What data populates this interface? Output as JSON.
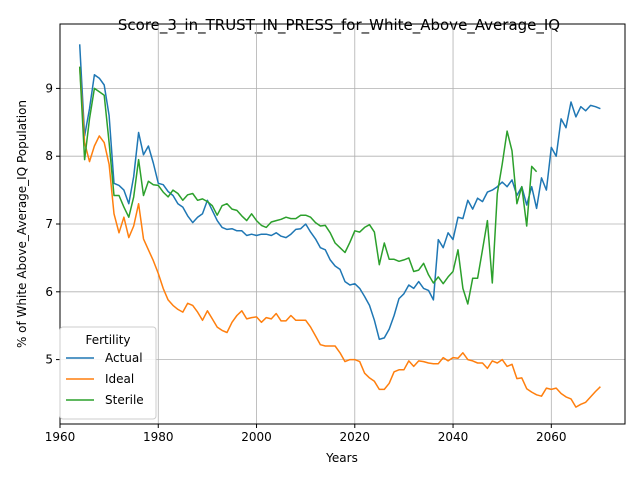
{
  "chart_data": {
    "type": "line",
    "title": "Score_3_in_TRUST_IN_PRESS_for_White_Above_Average_IQ",
    "xlabel": "Years",
    "ylabel": "% of White Above_Average_IQ Population",
    "xlim": [
      1960,
      2075
    ],
    "ylim": [
      4.05,
      9.95
    ],
    "xticks": [
      1960,
      1980,
      2000,
      2020,
      2040,
      2060
    ],
    "yticks": [
      5,
      6,
      7,
      8,
      9
    ],
    "grid": true,
    "legend": {
      "title": "Fertility",
      "placement": "lower-left"
    },
    "series": [
      {
        "name": "Actual",
        "color": "#1f77b4",
        "points": [
          [
            1964,
            9.65
          ],
          [
            1965,
            8.3
          ],
          [
            1966,
            8.7
          ],
          [
            1967,
            9.2
          ],
          [
            1968,
            9.15
          ],
          [
            1969,
            9.05
          ],
          [
            1970,
            8.6
          ],
          [
            1971,
            7.6
          ],
          [
            1972,
            7.57
          ],
          [
            1973,
            7.5
          ],
          [
            1974,
            7.3
          ],
          [
            1975,
            7.7
          ],
          [
            1976,
            8.35
          ],
          [
            1977,
            8.02
          ],
          [
            1978,
            8.15
          ],
          [
            1979,
            7.9
          ],
          [
            1980,
            7.6
          ],
          [
            1981,
            7.58
          ],
          [
            1982,
            7.48
          ],
          [
            1983,
            7.42
          ],
          [
            1984,
            7.3
          ],
          [
            1985,
            7.25
          ],
          [
            1986,
            7.12
          ],
          [
            1987,
            7.02
          ],
          [
            1988,
            7.1
          ],
          [
            1989,
            7.15
          ],
          [
            1990,
            7.35
          ],
          [
            1991,
            7.2
          ],
          [
            1992,
            7.05
          ],
          [
            1993,
            6.95
          ],
          [
            1994,
            6.92
          ],
          [
            1995,
            6.93
          ],
          [
            1996,
            6.9
          ],
          [
            1997,
            6.9
          ],
          [
            1998,
            6.83
          ],
          [
            1999,
            6.85
          ],
          [
            2000,
            6.83
          ],
          [
            2001,
            6.85
          ],
          [
            2002,
            6.85
          ],
          [
            2003,
            6.83
          ],
          [
            2004,
            6.87
          ],
          [
            2005,
            6.82
          ],
          [
            2006,
            6.8
          ],
          [
            2007,
            6.85
          ],
          [
            2008,
            6.92
          ],
          [
            2009,
            6.93
          ],
          [
            2010,
            7.0
          ],
          [
            2011,
            6.88
          ],
          [
            2012,
            6.78
          ],
          [
            2013,
            6.65
          ],
          [
            2014,
            6.62
          ],
          [
            2015,
            6.47
          ],
          [
            2016,
            6.38
          ],
          [
            2017,
            6.33
          ],
          [
            2018,
            6.15
          ],
          [
            2019,
            6.1
          ],
          [
            2020,
            6.12
          ],
          [
            2021,
            6.05
          ],
          [
            2022,
            5.93
          ],
          [
            2023,
            5.8
          ],
          [
            2024,
            5.58
          ],
          [
            2025,
            5.3
          ],
          [
            2026,
            5.32
          ],
          [
            2027,
            5.45
          ],
          [
            2028,
            5.65
          ],
          [
            2029,
            5.9
          ],
          [
            2030,
            5.97
          ],
          [
            2031,
            6.1
          ],
          [
            2032,
            6.05
          ],
          [
            2033,
            6.15
          ],
          [
            2034,
            6.05
          ],
          [
            2035,
            6.02
          ],
          [
            2036,
            5.88
          ],
          [
            2037,
            6.77
          ],
          [
            2038,
            6.65
          ],
          [
            2039,
            6.87
          ],
          [
            2040,
            6.77
          ],
          [
            2041,
            7.1
          ],
          [
            2042,
            7.08
          ],
          [
            2043,
            7.35
          ],
          [
            2044,
            7.22
          ],
          [
            2045,
            7.38
          ],
          [
            2046,
            7.33
          ],
          [
            2047,
            7.47
          ],
          [
            2048,
            7.5
          ],
          [
            2049,
            7.55
          ],
          [
            2050,
            7.62
          ],
          [
            2051,
            7.55
          ],
          [
            2052,
            7.65
          ],
          [
            2053,
            7.42
          ],
          [
            2054,
            7.55
          ],
          [
            2055,
            7.28
          ],
          [
            2056,
            7.55
          ],
          [
            2057,
            7.23
          ],
          [
            2058,
            7.68
          ],
          [
            2059,
            7.5
          ],
          [
            2060,
            8.13
          ],
          [
            2061,
            8.0
          ],
          [
            2062,
            8.55
          ],
          [
            2063,
            8.42
          ],
          [
            2064,
            8.8
          ],
          [
            2065,
            8.58
          ],
          [
            2066,
            8.73
          ],
          [
            2067,
            8.67
          ],
          [
            2068,
            8.75
          ],
          [
            2069,
            8.73
          ],
          [
            2070,
            8.7
          ]
        ]
      },
      {
        "name": "Ideal",
        "color": "#ff7f0e",
        "points": [
          [
            1964,
            9.32
          ],
          [
            1965,
            8.2
          ],
          [
            1966,
            7.92
          ],
          [
            1967,
            8.15
          ],
          [
            1968,
            8.3
          ],
          [
            1969,
            8.2
          ],
          [
            1970,
            7.88
          ],
          [
            1971,
            7.15
          ],
          [
            1972,
            6.87
          ],
          [
            1973,
            7.1
          ],
          [
            1974,
            6.8
          ],
          [
            1975,
            6.97
          ],
          [
            1976,
            7.3
          ],
          [
            1977,
            6.78
          ],
          [
            1978,
            6.62
          ],
          [
            1979,
            6.46
          ],
          [
            1980,
            6.27
          ],
          [
            1981,
            6.05
          ],
          [
            1982,
            5.88
          ],
          [
            1983,
            5.8
          ],
          [
            1984,
            5.74
          ],
          [
            1985,
            5.7
          ],
          [
            1986,
            5.83
          ],
          [
            1987,
            5.8
          ],
          [
            1988,
            5.7
          ],
          [
            1989,
            5.58
          ],
          [
            1990,
            5.72
          ],
          [
            1991,
            5.6
          ],
          [
            1992,
            5.48
          ],
          [
            1993,
            5.43
          ],
          [
            1994,
            5.4
          ],
          [
            1995,
            5.55
          ],
          [
            1996,
            5.65
          ],
          [
            1997,
            5.72
          ],
          [
            1998,
            5.6
          ],
          [
            1999,
            5.62
          ],
          [
            2000,
            5.63
          ],
          [
            2001,
            5.55
          ],
          [
            2002,
            5.62
          ],
          [
            2003,
            5.6
          ],
          [
            2004,
            5.68
          ],
          [
            2005,
            5.57
          ],
          [
            2006,
            5.57
          ],
          [
            2007,
            5.65
          ],
          [
            2008,
            5.58
          ],
          [
            2009,
            5.58
          ],
          [
            2010,
            5.58
          ],
          [
            2011,
            5.48
          ],
          [
            2012,
            5.35
          ],
          [
            2013,
            5.22
          ],
          [
            2014,
            5.2
          ],
          [
            2015,
            5.2
          ],
          [
            2016,
            5.2
          ],
          [
            2017,
            5.1
          ],
          [
            2018,
            4.97
          ],
          [
            2019,
            5.0
          ],
          [
            2020,
            5.0
          ],
          [
            2021,
            4.97
          ],
          [
            2022,
            4.8
          ],
          [
            2023,
            4.73
          ],
          [
            2024,
            4.68
          ],
          [
            2025,
            4.56
          ],
          [
            2026,
            4.56
          ],
          [
            2027,
            4.65
          ],
          [
            2028,
            4.82
          ],
          [
            2029,
            4.85
          ],
          [
            2030,
            4.85
          ],
          [
            2031,
            4.98
          ],
          [
            2032,
            4.9
          ],
          [
            2033,
            4.98
          ],
          [
            2034,
            4.97
          ],
          [
            2035,
            4.95
          ],
          [
            2036,
            4.94
          ],
          [
            2037,
            4.94
          ],
          [
            2038,
            5.03
          ],
          [
            2039,
            4.98
          ],
          [
            2040,
            5.03
          ],
          [
            2041,
            5.02
          ],
          [
            2042,
            5.1
          ],
          [
            2043,
            5.0
          ],
          [
            2044,
            4.98
          ],
          [
            2045,
            4.95
          ],
          [
            2046,
            4.95
          ],
          [
            2047,
            4.87
          ],
          [
            2048,
            4.98
          ],
          [
            2049,
            4.95
          ],
          [
            2050,
            5.0
          ],
          [
            2051,
            4.9
          ],
          [
            2052,
            4.93
          ],
          [
            2053,
            4.72
          ],
          [
            2054,
            4.73
          ],
          [
            2055,
            4.57
          ],
          [
            2056,
            4.52
          ],
          [
            2057,
            4.48
          ],
          [
            2058,
            4.46
          ],
          [
            2059,
            4.58
          ],
          [
            2060,
            4.56
          ],
          [
            2061,
            4.58
          ],
          [
            2062,
            4.5
          ],
          [
            2063,
            4.45
          ],
          [
            2064,
            4.42
          ],
          [
            2065,
            4.3
          ],
          [
            2066,
            4.34
          ],
          [
            2067,
            4.37
          ],
          [
            2068,
            4.45
          ],
          [
            2069,
            4.53
          ],
          [
            2070,
            4.6
          ]
        ]
      },
      {
        "name": "Sterile",
        "color": "#2ca02c",
        "points": [
          [
            1964,
            9.32
          ],
          [
            1965,
            7.95
          ],
          [
            1966,
            8.55
          ],
          [
            1967,
            9.0
          ],
          [
            1968,
            8.95
          ],
          [
            1969,
            8.9
          ],
          [
            1970,
            8.2
          ],
          [
            1971,
            7.42
          ],
          [
            1972,
            7.42
          ],
          [
            1973,
            7.25
          ],
          [
            1974,
            7.1
          ],
          [
            1975,
            7.4
          ],
          [
            1976,
            7.95
          ],
          [
            1977,
            7.42
          ],
          [
            1978,
            7.63
          ],
          [
            1979,
            7.58
          ],
          [
            1980,
            7.57
          ],
          [
            1981,
            7.47
          ],
          [
            1982,
            7.4
          ],
          [
            1983,
            7.5
          ],
          [
            1984,
            7.45
          ],
          [
            1985,
            7.35
          ],
          [
            1986,
            7.43
          ],
          [
            1987,
            7.45
          ],
          [
            1988,
            7.35
          ],
          [
            1989,
            7.37
          ],
          [
            1990,
            7.33
          ],
          [
            1991,
            7.27
          ],
          [
            1992,
            7.13
          ],
          [
            1993,
            7.27
          ],
          [
            1994,
            7.3
          ],
          [
            1995,
            7.22
          ],
          [
            1996,
            7.2
          ],
          [
            1997,
            7.12
          ],
          [
            1998,
            7.05
          ],
          [
            1999,
            7.15
          ],
          [
            2000,
            7.05
          ],
          [
            2001,
            6.98
          ],
          [
            2002,
            6.95
          ],
          [
            2003,
            7.03
          ],
          [
            2004,
            7.05
          ],
          [
            2005,
            7.07
          ],
          [
            2006,
            7.1
          ],
          [
            2007,
            7.08
          ],
          [
            2008,
            7.08
          ],
          [
            2009,
            7.13
          ],
          [
            2010,
            7.13
          ],
          [
            2011,
            7.1
          ],
          [
            2012,
            7.02
          ],
          [
            2013,
            6.97
          ],
          [
            2014,
            6.98
          ],
          [
            2015,
            6.87
          ],
          [
            2016,
            6.72
          ],
          [
            2017,
            6.65
          ],
          [
            2018,
            6.58
          ],
          [
            2019,
            6.73
          ],
          [
            2020,
            6.9
          ],
          [
            2021,
            6.88
          ],
          [
            2022,
            6.95
          ],
          [
            2023,
            6.99
          ],
          [
            2024,
            6.88
          ],
          [
            2025,
            6.4
          ],
          [
            2026,
            6.72
          ],
          [
            2027,
            6.48
          ],
          [
            2028,
            6.48
          ],
          [
            2029,
            6.45
          ],
          [
            2030,
            6.47
          ],
          [
            2031,
            6.5
          ],
          [
            2032,
            6.3
          ],
          [
            2033,
            6.32
          ],
          [
            2034,
            6.42
          ],
          [
            2035,
            6.25
          ],
          [
            2036,
            6.13
          ],
          [
            2037,
            6.22
          ],
          [
            2038,
            6.12
          ],
          [
            2039,
            6.22
          ],
          [
            2040,
            6.3
          ],
          [
            2041,
            6.62
          ],
          [
            2042,
            6.05
          ],
          [
            2043,
            5.82
          ],
          [
            2044,
            6.2
          ],
          [
            2045,
            6.2
          ],
          [
            2046,
            6.62
          ],
          [
            2047,
            7.05
          ],
          [
            2048,
            6.13
          ],
          [
            2049,
            7.45
          ],
          [
            2050,
            7.88
          ],
          [
            2051,
            8.37
          ],
          [
            2052,
            8.08
          ],
          [
            2053,
            7.3
          ],
          [
            2054,
            7.55
          ],
          [
            2055,
            6.97
          ],
          [
            2056,
            7.85
          ],
          [
            2057,
            7.77
          ]
        ]
      }
    ]
  }
}
